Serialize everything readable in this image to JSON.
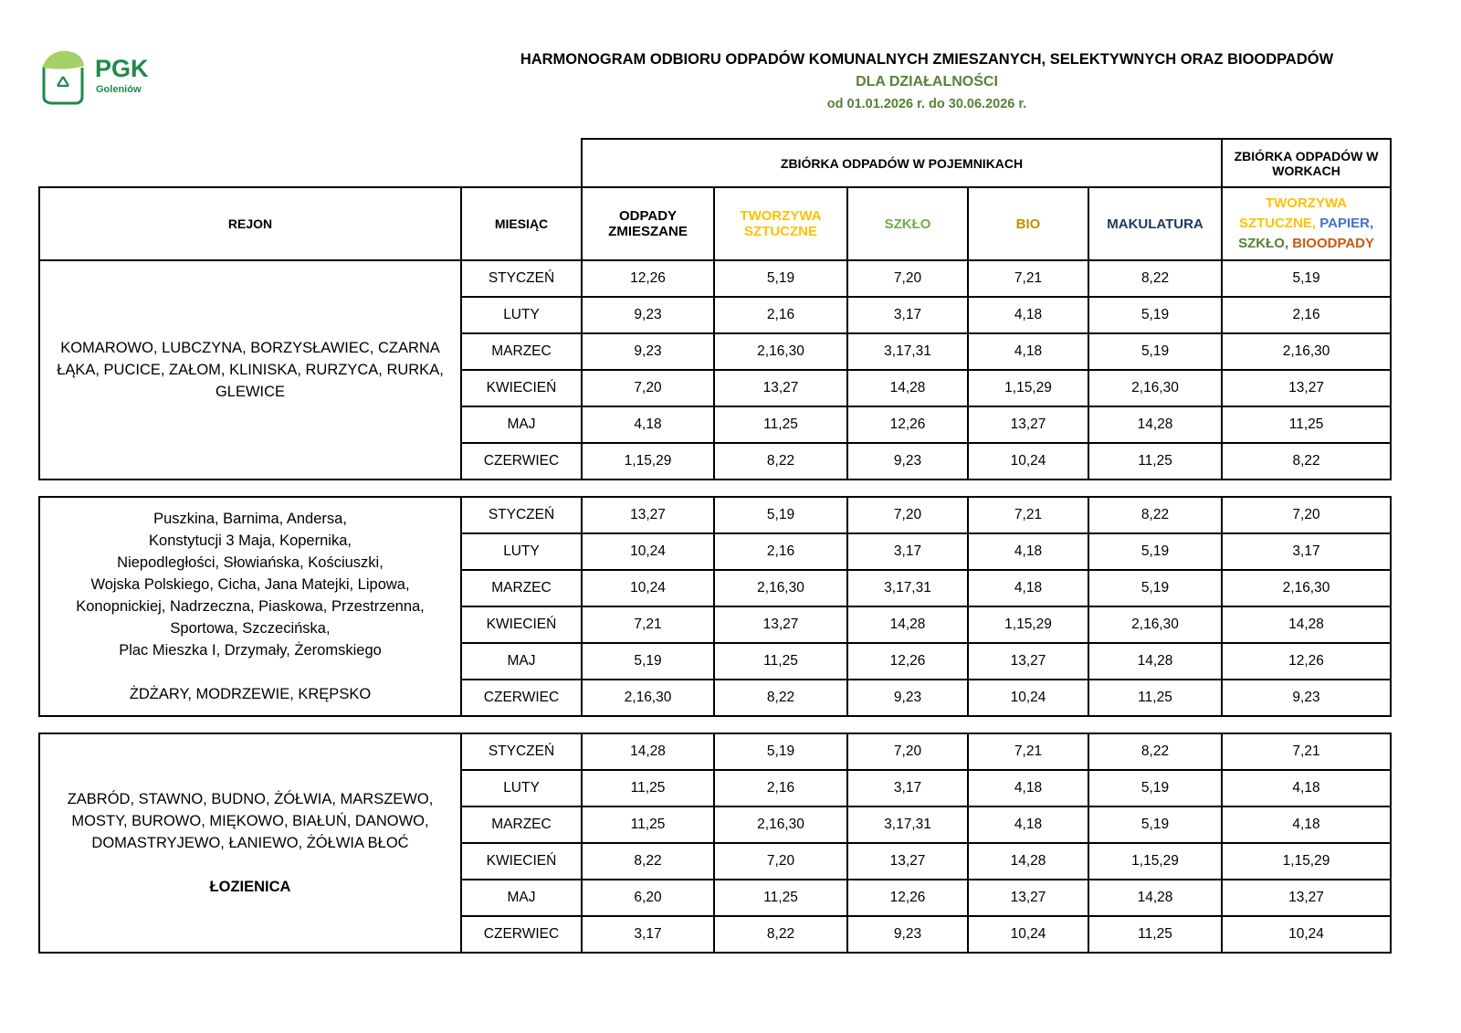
{
  "logo": {
    "name": "PGK",
    "sub": "Goleniów"
  },
  "header": {
    "title": "HARMONOGRAM ODBIORU ODPADÓW KOMUNALNYCH ZMIESZANYCH, SELEKTYWNYCH ORAZ BIOODPADÓW",
    "subtitle": "DLA DZIAŁALNOŚCI",
    "period": "od 01.01.2026 r. do 30.06.2026 r."
  },
  "colors": {
    "yellow": "#FFC000",
    "blue": "#4472C4",
    "green": "#548235",
    "orange": "#C55A11",
    "bio": "#BF8F00",
    "makulatura": "#1F3864",
    "szklo": "#70AD47"
  },
  "table": {
    "group_containers": "ZBIÓRKA ODPADÓW W POJEMNIKACH",
    "group_bags": "ZBIÓRKA ODPADÓW W WORKACH",
    "col_region": "REJON",
    "col_month": "MIESIĄC",
    "col_mixed": "ODPADY ZMIESZANE",
    "col_plastic": "TWORZYWA SZTUCZNE",
    "col_glass": "SZKŁO",
    "col_bio": "BIO",
    "col_paper": "MAKULATURA",
    "col_bags": {
      "a": "TWORZYWA SZTUCZNE,",
      "b": "PAPIER,",
      "c": "SZKŁO,",
      "d": "BIOODPADY"
    }
  },
  "sections": [
    {
      "region": [
        "KOMAROWO, LUBCZYNA, BORZYSŁAWIEC, CZARNA ŁĄKA, PUCICE, ZAŁOM, KLINISKA, RURZYCA, RURKA, GLEWICE"
      ],
      "rows": [
        [
          "STYCZEŃ",
          "12,26",
          "5,19",
          "7,20",
          "7,21",
          "8,22",
          "5,19"
        ],
        [
          "LUTY",
          "9,23",
          "2,16",
          "3,17",
          "4,18",
          "5,19",
          "2,16"
        ],
        [
          "MARZEC",
          "9,23",
          "2,16,30",
          "3,17,31",
          "4,18",
          "5,19",
          "2,16,30"
        ],
        [
          "KWIECIEŃ",
          "7,20",
          "13,27",
          "14,28",
          "1,15,29",
          "2,16,30",
          "13,27"
        ],
        [
          "MAJ",
          "4,18",
          "11,25",
          "12,26",
          "13,27",
          "14,28",
          "11,25"
        ],
        [
          "CZERWIEC",
          "1,15,29",
          "8,22",
          "9,23",
          "10,24",
          "11,25",
          "8,22"
        ]
      ]
    },
    {
      "region": [
        "Puszkina, Barnima, Andersa,",
        "Konstytucji 3 Maja, Kopernika,",
        "Niepodległości, Słowiańska, Kościuszki,",
        "Wojska Polskiego, Cicha, Jana Matejki, Lipowa,",
        "Konopnickiej, Nadrzeczna, Piaskowa, Przestrzenna,",
        "Sportowa, Szczecińska,",
        "Plac Mieszka I, Drzymały, Żeromskiego",
        "",
        "ŻDŻARY, MODRZEWIE, KRĘPSKO"
      ],
      "rows": [
        [
          "STYCZEŃ",
          "13,27",
          "5,19",
          "7,20",
          "7,21",
          "8,22",
          "7,20"
        ],
        [
          "LUTY",
          "10,24",
          "2,16",
          "3,17",
          "4,18",
          "5,19",
          "3,17"
        ],
        [
          "MARZEC",
          "10,24",
          "2,16,30",
          "3,17,31",
          "4,18",
          "5,19",
          "2,16,30"
        ],
        [
          "KWIECIEŃ",
          "7,21",
          "13,27",
          "14,28",
          "1,15,29",
          "2,16,30",
          "14,28"
        ],
        [
          "MAJ",
          "5,19",
          "11,25",
          "12,26",
          "13,27",
          "14,28",
          "12,26"
        ],
        [
          "CZERWIEC",
          "2,16,30",
          "8,22",
          "9,23",
          "10,24",
          "11,25",
          "9,23"
        ]
      ]
    },
    {
      "region": [
        "ZABRÓD, STAWNO, BUDNO, ŻÓŁWIA, MARSZEWO, MOSTY, BUROWO, MIĘKOWO, BIAŁUŃ, DANOWO, DOMASTRYJEWO, ŁANIEWO, ŻÓŁWIA BŁOĆ",
        "",
        "ŁOZIENICA"
      ],
      "rows": [
        [
          "STYCZEŃ",
          "14,28",
          "5,19",
          "7,20",
          "7,21",
          "8,22",
          "7,21"
        ],
        [
          "LUTY",
          "11,25",
          "2,16",
          "3,17",
          "4,18",
          "5,19",
          "4,18"
        ],
        [
          "MARZEC",
          "11,25",
          "2,16,30",
          "3,17,31",
          "4,18",
          "5,19",
          "4,18"
        ],
        [
          "KWIECIEŃ",
          "8,22",
          "7,20",
          "13,27",
          "14,28",
          "1,15,29",
          "1,15,29"
        ],
        [
          "MAJ",
          "6,20",
          "11,25",
          "12,26",
          "13,27",
          "14,28",
          "13,27"
        ],
        [
          "CZERWIEC",
          "3,17",
          "8,22",
          "9,23",
          "10,24",
          "11,25",
          "10,24"
        ]
      ]
    }
  ]
}
